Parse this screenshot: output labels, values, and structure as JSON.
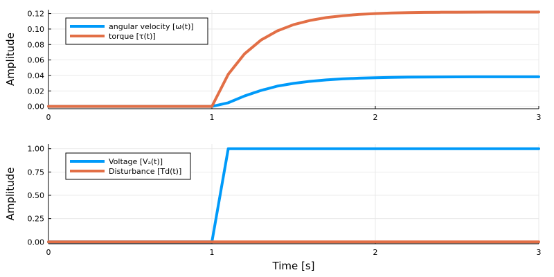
{
  "colors": {
    "series_blue": "#009af9",
    "series_orange": "#e26f46",
    "grid": "#e5e5e5",
    "axis": "#000000",
    "background": "#ffffff"
  },
  "chart_data": [
    {
      "type": "line",
      "title": "",
      "xlabel": "",
      "ylabel": "Amplitude",
      "xlim": [
        0,
        3
      ],
      "ylim": [
        -0.003,
        0.125
      ],
      "xticks": [
        0,
        1,
        2,
        3
      ],
      "xtick_labels": [
        "0",
        "1",
        "2",
        "3"
      ],
      "yticks": [
        0,
        0.02,
        0.04,
        0.06,
        0.08,
        0.1,
        0.12
      ],
      "ytick_labels": [
        "0.00",
        "0.02",
        "0.04",
        "0.06",
        "0.08",
        "0.10",
        "0.12"
      ],
      "grid": true,
      "legend_position": "top-left",
      "x": [
        0,
        0.1,
        0.2,
        0.3,
        0.4,
        0.5,
        0.6,
        0.7,
        0.8,
        0.9,
        1.0,
        1.1,
        1.2,
        1.3,
        1.4,
        1.5,
        1.6,
        1.7,
        1.8,
        1.9,
        2.0,
        2.1,
        2.2,
        2.3,
        2.4,
        2.5,
        2.6,
        2.7,
        2.8,
        2.9,
        3.0
      ],
      "series": [
        {
          "name": "angular velocity [ω(t)]",
          "color": "#009af9",
          "values": [
            0,
            0,
            0,
            0,
            0,
            0,
            0,
            0,
            0,
            0,
            0,
            0.0047,
            0.0135,
            0.0206,
            0.0262,
            0.0298,
            0.0324,
            0.0343,
            0.0356,
            0.0365,
            0.0371,
            0.0375,
            0.0378,
            0.038,
            0.0381,
            0.0382,
            0.0383,
            0.0383,
            0.0383,
            0.0383,
            0.0383
          ]
        },
        {
          "name": "torque [τ(t)]",
          "color": "#e26f46",
          "values": [
            0,
            0,
            0,
            0,
            0,
            0,
            0,
            0,
            0,
            0,
            0,
            0.0415,
            0.068,
            0.0857,
            0.0976,
            0.1057,
            0.1111,
            0.1148,
            0.1172,
            0.1189,
            0.12,
            0.1207,
            0.1212,
            0.1215,
            0.1217,
            0.1218,
            0.1219,
            0.122,
            0.122,
            0.122,
            0.122
          ]
        }
      ]
    },
    {
      "type": "line",
      "title": "",
      "xlabel": "Time [s]",
      "ylabel": "Amplitude",
      "xlim": [
        0,
        3
      ],
      "ylim": [
        -0.02,
        1.05
      ],
      "xticks": [
        0,
        1,
        2,
        3
      ],
      "xtick_labels": [
        "0",
        "1",
        "2",
        "3"
      ],
      "yticks": [
        0,
        0.25,
        0.5,
        0.75,
        1.0
      ],
      "ytick_labels": [
        "0.00",
        "0.25",
        "0.50",
        "0.75",
        "1.00"
      ],
      "grid": true,
      "legend_position": "top-left",
      "x": [
        0,
        0.1,
        0.2,
        0.3,
        0.4,
        0.5,
        0.6,
        0.7,
        0.8,
        0.9,
        1.0,
        1.1,
        1.2,
        1.3,
        1.4,
        1.5,
        1.6,
        1.7,
        1.8,
        1.9,
        2.0,
        2.1,
        2.2,
        2.3,
        2.4,
        2.5,
        2.6,
        2.7,
        2.8,
        2.9,
        3.0
      ],
      "series": [
        {
          "name": "Voltage [Vₐ(t)]",
          "color": "#009af9",
          "values": [
            0,
            0,
            0,
            0,
            0,
            0,
            0,
            0,
            0,
            0,
            0,
            1,
            1,
            1,
            1,
            1,
            1,
            1,
            1,
            1,
            1,
            1,
            1,
            1,
            1,
            1,
            1,
            1,
            1,
            1,
            1
          ]
        },
        {
          "name": "Disturbance [Td(t)]",
          "color": "#e26f46",
          "values": [
            0,
            0,
            0,
            0,
            0,
            0,
            0,
            0,
            0,
            0,
            0,
            0,
            0,
            0,
            0,
            0,
            0,
            0,
            0,
            0,
            0,
            0,
            0,
            0,
            0,
            0,
            0,
            0,
            0,
            0,
            0
          ]
        }
      ]
    }
  ]
}
